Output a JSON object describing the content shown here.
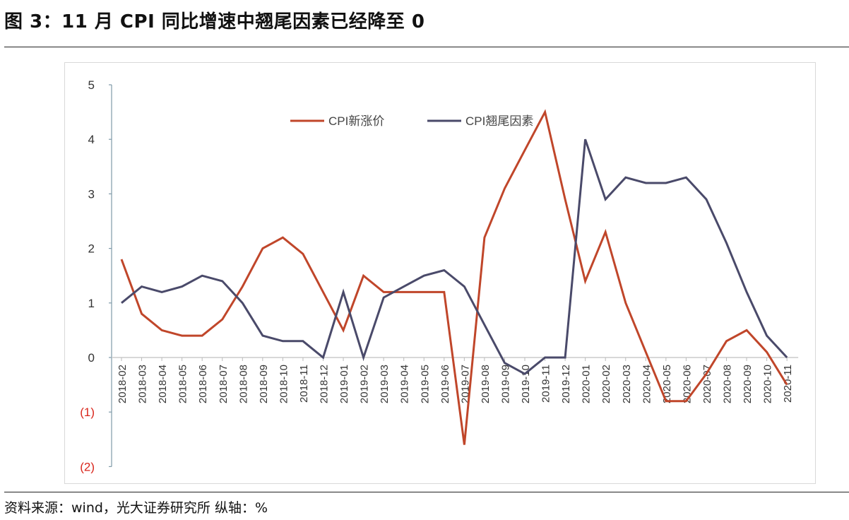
{
  "title": "图 3：11 月 CPI 同比增速中翘尾因素已经降至 0",
  "source": "资料来源：wind，光大证券研究所 纵轴：%",
  "chart_data": {
    "type": "line",
    "categories": [
      "2018-02",
      "2018-03",
      "2018-04",
      "2018-05",
      "2018-06",
      "2018-07",
      "2018-08",
      "2018-09",
      "2018-10",
      "2018-11",
      "2018-12",
      "2019-01",
      "2019-02",
      "2019-03",
      "2019-04",
      "2019-05",
      "2019-06",
      "2019-07",
      "2019-08",
      "2019-09",
      "2019-10",
      "2019-11",
      "2019-12",
      "2020-01",
      "2020-02",
      "2020-03",
      "2020-04",
      "2020-05",
      "2020-06",
      "2020-07",
      "2020-08",
      "2020-09",
      "2020-10",
      "2020-11"
    ],
    "series": [
      {
        "name": "CPI新涨价",
        "color": "#c0462a",
        "values": [
          1.8,
          0.8,
          0.5,
          0.4,
          0.4,
          0.7,
          1.3,
          2.0,
          2.2,
          1.9,
          1.2,
          0.5,
          1.5,
          1.2,
          1.2,
          1.2,
          1.2,
          -1.6,
          2.2,
          3.1,
          3.8,
          4.5,
          2.9,
          1.4,
          2.3,
          1.0,
          0.1,
          -0.8,
          -0.8,
          -0.3,
          0.3,
          0.5,
          0.1,
          -0.5
        ]
      },
      {
        "name": "CPI翘尾因素",
        "color": "#4a4a6a",
        "values": [
          1.0,
          1.3,
          1.2,
          1.3,
          1.5,
          1.4,
          1.0,
          0.4,
          0.3,
          0.3,
          0.0,
          1.2,
          0.0,
          1.1,
          1.3,
          1.5,
          1.6,
          1.3,
          0.6,
          -0.1,
          -0.3,
          0.0,
          0.0,
          4.0,
          2.9,
          3.3,
          3.2,
          3.2,
          3.3,
          2.9,
          2.1,
          1.2,
          0.4,
          0.0
        ]
      }
    ],
    "yticks": [
      {
        "value": 5,
        "label": "5",
        "color": "#333333"
      },
      {
        "value": 4,
        "label": "4",
        "color": "#333333"
      },
      {
        "value": 3,
        "label": "3",
        "color": "#333333"
      },
      {
        "value": 2,
        "label": "2",
        "color": "#333333"
      },
      {
        "value": 1,
        "label": "1",
        "color": "#333333"
      },
      {
        "value": 0,
        "label": "0",
        "color": "#333333"
      },
      {
        "value": -1,
        "label": "(1)",
        "color": "#d9261c"
      },
      {
        "value": -2,
        "label": "(2)",
        "color": "#d9261c"
      }
    ],
    "ylim": [
      -2,
      5
    ],
    "legend": "top-center",
    "grid": false
  }
}
